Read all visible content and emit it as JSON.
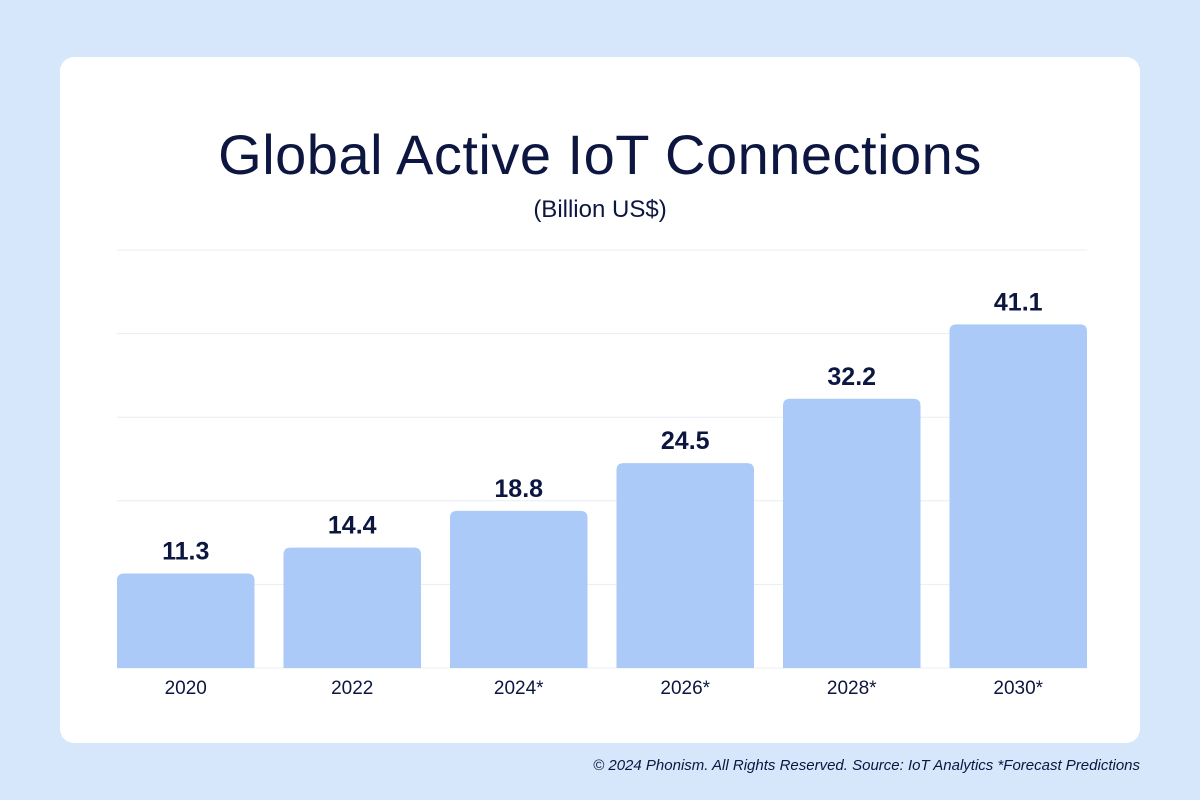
{
  "chart_data": {
    "type": "bar",
    "title": "Global Active IoT Connections",
    "subtitle": "(Billion US$)",
    "categories": [
      "2020",
      "2022",
      "2024*",
      "2026*",
      "2028*",
      "2030*"
    ],
    "values": [
      11.3,
      14.4,
      18.8,
      24.5,
      32.2,
      41.1
    ],
    "value_labels": [
      "11.3",
      "14.4",
      "18.8",
      "24.5",
      "32.2",
      "41.1"
    ],
    "ylim": [
      0,
      50
    ],
    "grid": true,
    "bar_color": "#abcaf8",
    "text_color": "#0c1640",
    "grid_color": "#e8edf3"
  },
  "footer": "© 2024 Phonism. All Rights Reserved. Source: IoT Analytics *Forecast Predictions",
  "colors": {
    "page_bg": "#d6e6fb",
    "card_bg": "#ffffff"
  }
}
